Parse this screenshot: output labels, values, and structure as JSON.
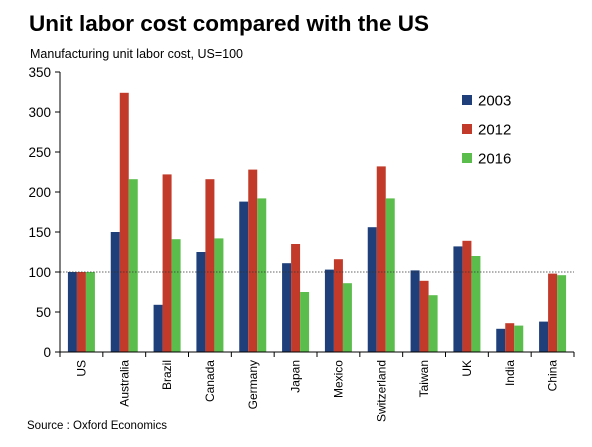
{
  "header": {
    "title": "Unit labor cost compared with the US",
    "subtitle": "Manufacturing unit labor cost, US=100"
  },
  "footer": {
    "source": "Source : Oxford Economics"
  },
  "chart_data": {
    "type": "bar",
    "title": "Unit labor cost compared with the US",
    "subtitle": "Manufacturing unit labor cost, US=100",
    "xlabel": "",
    "ylabel": "",
    "ylim": [
      0,
      350
    ],
    "yticks": [
      0,
      50,
      100,
      150,
      200,
      250,
      300,
      350
    ],
    "reference_line": {
      "value": 100,
      "style": "dotted"
    },
    "grid": false,
    "legend_position": "top-right",
    "categories": [
      "US",
      "Australia",
      "Brazil",
      "Canada",
      "Germany",
      "Japan",
      "Mexico",
      "Switzerland",
      "Taiwan",
      "UK",
      "India",
      "China"
    ],
    "series": [
      {
        "name": "2003",
        "color": "#1f3f7a",
        "values": [
          100,
          150,
          59,
          125,
          188,
          111,
          103,
          156,
          102,
          132,
          29,
          38
        ]
      },
      {
        "name": "2012",
        "color": "#c23b2a",
        "values": [
          100,
          324,
          222,
          216,
          228,
          135,
          116,
          232,
          89,
          139,
          36,
          98
        ]
      },
      {
        "name": "2016",
        "color": "#5bbd4c",
        "values": [
          100,
          216,
          141,
          142,
          192,
          75,
          86,
          192,
          71,
          120,
          33,
          96
        ]
      }
    ]
  }
}
